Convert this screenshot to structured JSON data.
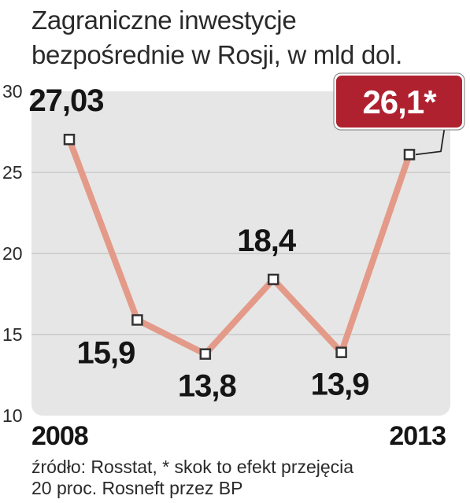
{
  "title_lines": [
    "Zagraniczne inwestycje",
    "bezpośrednie w Rosji, w mld dol."
  ],
  "footer_lines": [
    "źródło: Rosstat, * skok to efekt przejęcia",
    "20 proc. Rosneft przez BP"
  ],
  "colors": {
    "plot_bg": "#e6e6e6",
    "grid": "#c4c4c4",
    "line": "#e49a88",
    "marker_fill": "#ffffff",
    "marker_stroke": "#333333",
    "highlight_box": "#b0212f",
    "highlight_text": "#ffffff"
  },
  "chart_data": {
    "type": "line",
    "title": "Zagraniczne inwestycje bezpośrednie w Rosji, w mld dol.",
    "xlabel": "",
    "ylabel": "",
    "ylim": [
      10,
      30
    ],
    "yticks": [
      10,
      15,
      20,
      25,
      30
    ],
    "x_tick_labels": [
      "2008",
      "2013"
    ],
    "x": [
      2008,
      2009,
      2010,
      2011,
      2012,
      2013
    ],
    "series": [
      {
        "values": [
          27.03,
          15.9,
          13.8,
          18.4,
          13.9,
          26.1
        ],
        "labels": [
          "27,03",
          "15,9",
          "13,8",
          "18,4",
          "13,9",
          "26,1*"
        ]
      }
    ],
    "grid": true,
    "highlight_last": true
  }
}
